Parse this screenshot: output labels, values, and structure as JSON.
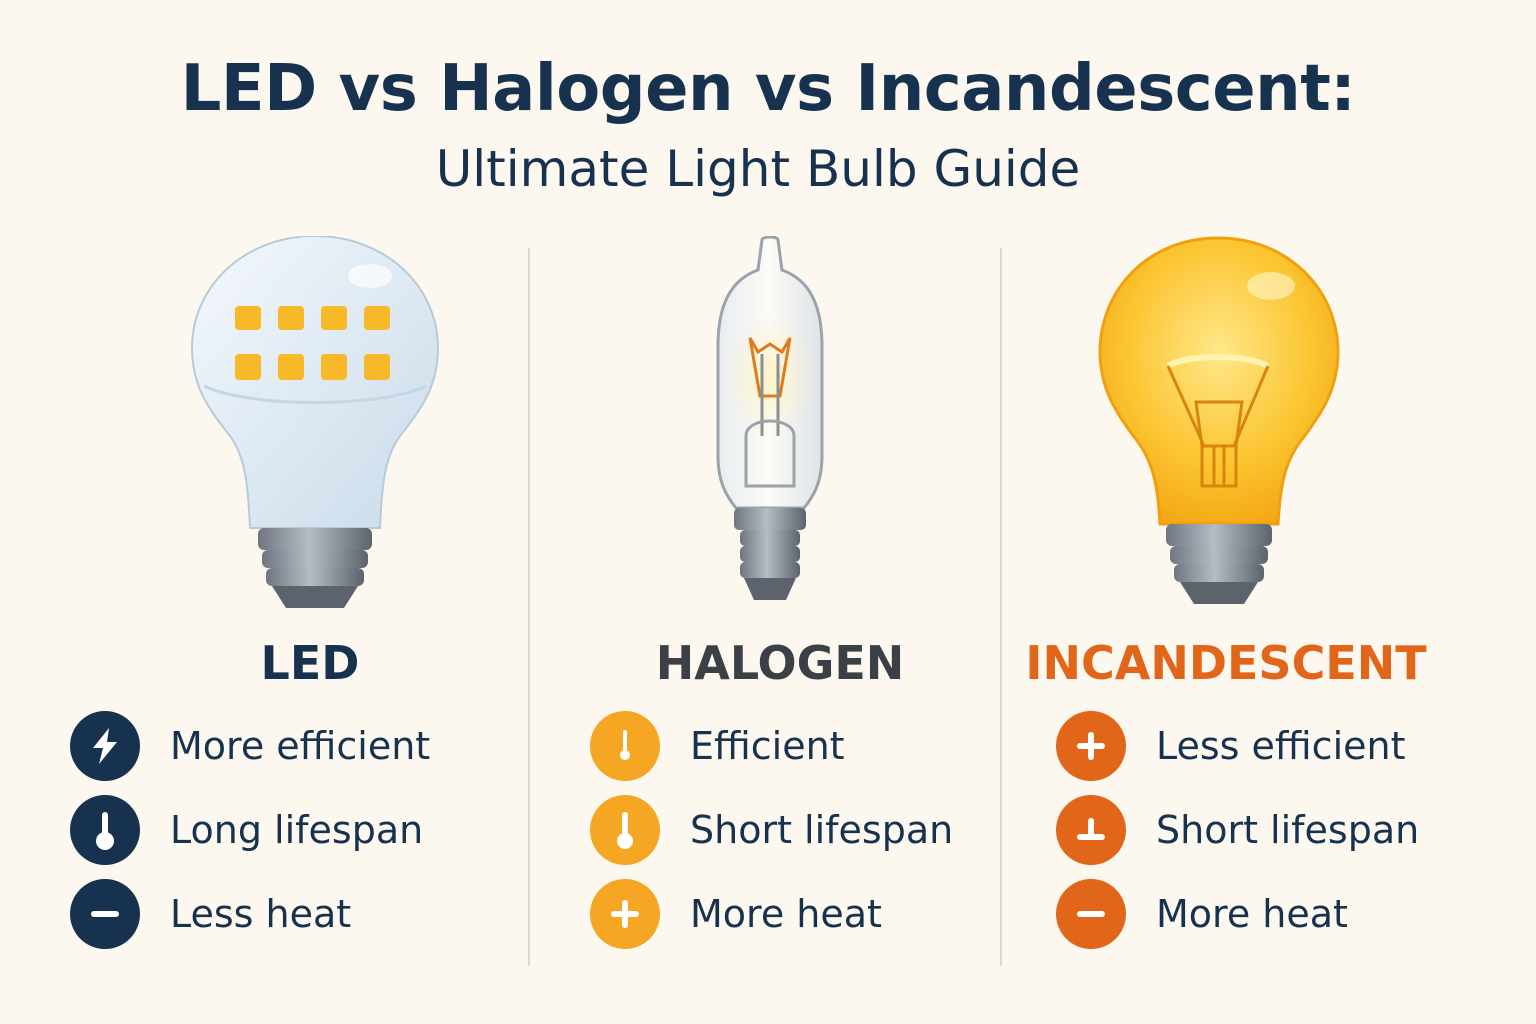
{
  "header": {
    "title": "LED vs Halogen vs Incandescent:",
    "subtitle": "Ultimate Light Bulb Guide"
  },
  "colors": {
    "navy": "#16324f",
    "amber": "#f5a623",
    "orange": "#e2661a",
    "background": "#fcf8ef"
  },
  "columns": [
    {
      "name": "LED",
      "title_color": "#16324f",
      "icon_color": "#16324f",
      "features": [
        {
          "icon": "lightning-icon",
          "label": "More efficient"
        },
        {
          "icon": "thermometer-icon",
          "label": "Long lifespan"
        },
        {
          "icon": "minus-icon",
          "label": "Less heat"
        }
      ]
    },
    {
      "name": "HALOGEN",
      "title_color": "#3a4046",
      "icon_color": "#f5a623",
      "features": [
        {
          "icon": "thermometer-icon",
          "label": "Efficient"
        },
        {
          "icon": "thermometer-icon",
          "label": "Short lifespan"
        },
        {
          "icon": "plus-icon",
          "label": "More heat"
        }
      ]
    },
    {
      "name": "INCANDESCENT",
      "title_color": "#e2661a",
      "icon_color": "#e2661a",
      "features": [
        {
          "icon": "plus-icon",
          "label": "Less efficient"
        },
        {
          "icon": "inverted-t-icon",
          "label": "Short lifespan"
        },
        {
          "icon": "minus-icon",
          "label": "More heat"
        }
      ]
    }
  ]
}
